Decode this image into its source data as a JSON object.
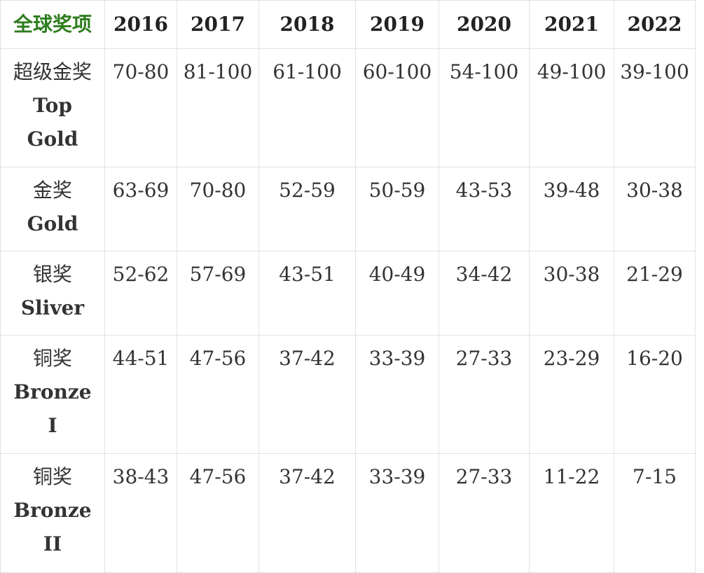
{
  "table": {
    "corner_header": "全球奖项",
    "years": [
      "2016",
      "2017",
      "2018",
      "2019",
      "2020",
      "2021",
      "2022"
    ],
    "rows": [
      {
        "label_cn": "超级金奖",
        "label_en_lines": [
          "Top",
          "Gold"
        ],
        "values": [
          "70-80",
          "81-100",
          "61-100",
          "60-100",
          "54-100",
          "49-100",
          "39-100"
        ]
      },
      {
        "label_cn": "金奖",
        "label_en_lines": [
          "Gold"
        ],
        "values": [
          "63-69",
          "70-80",
          "52-59",
          "50-59",
          "43-53",
          "39-48",
          "30-38"
        ]
      },
      {
        "label_cn": "银奖",
        "label_en_lines": [
          "Sliver"
        ],
        "values": [
          "52-62",
          "57-69",
          "43-51",
          "40-49",
          "34-42",
          "30-38",
          "21-29"
        ]
      },
      {
        "label_cn": "铜奖",
        "label_en_lines": [
          "Bronze",
          "I"
        ],
        "values": [
          "44-51",
          "47-56",
          "37-42",
          "33-39",
          "27-33",
          "23-29",
          "16-20"
        ]
      },
      {
        "label_cn": "铜奖",
        "label_en_lines": [
          "Bronze",
          "II"
        ],
        "values": [
          "38-43",
          "47-56",
          "37-42",
          "33-39",
          "27-33",
          "11-22",
          "7-15"
        ]
      }
    ]
  },
  "colors": {
    "corner_header": "#2e7d1e",
    "text": "#333333",
    "border": "#e2e2e2"
  }
}
